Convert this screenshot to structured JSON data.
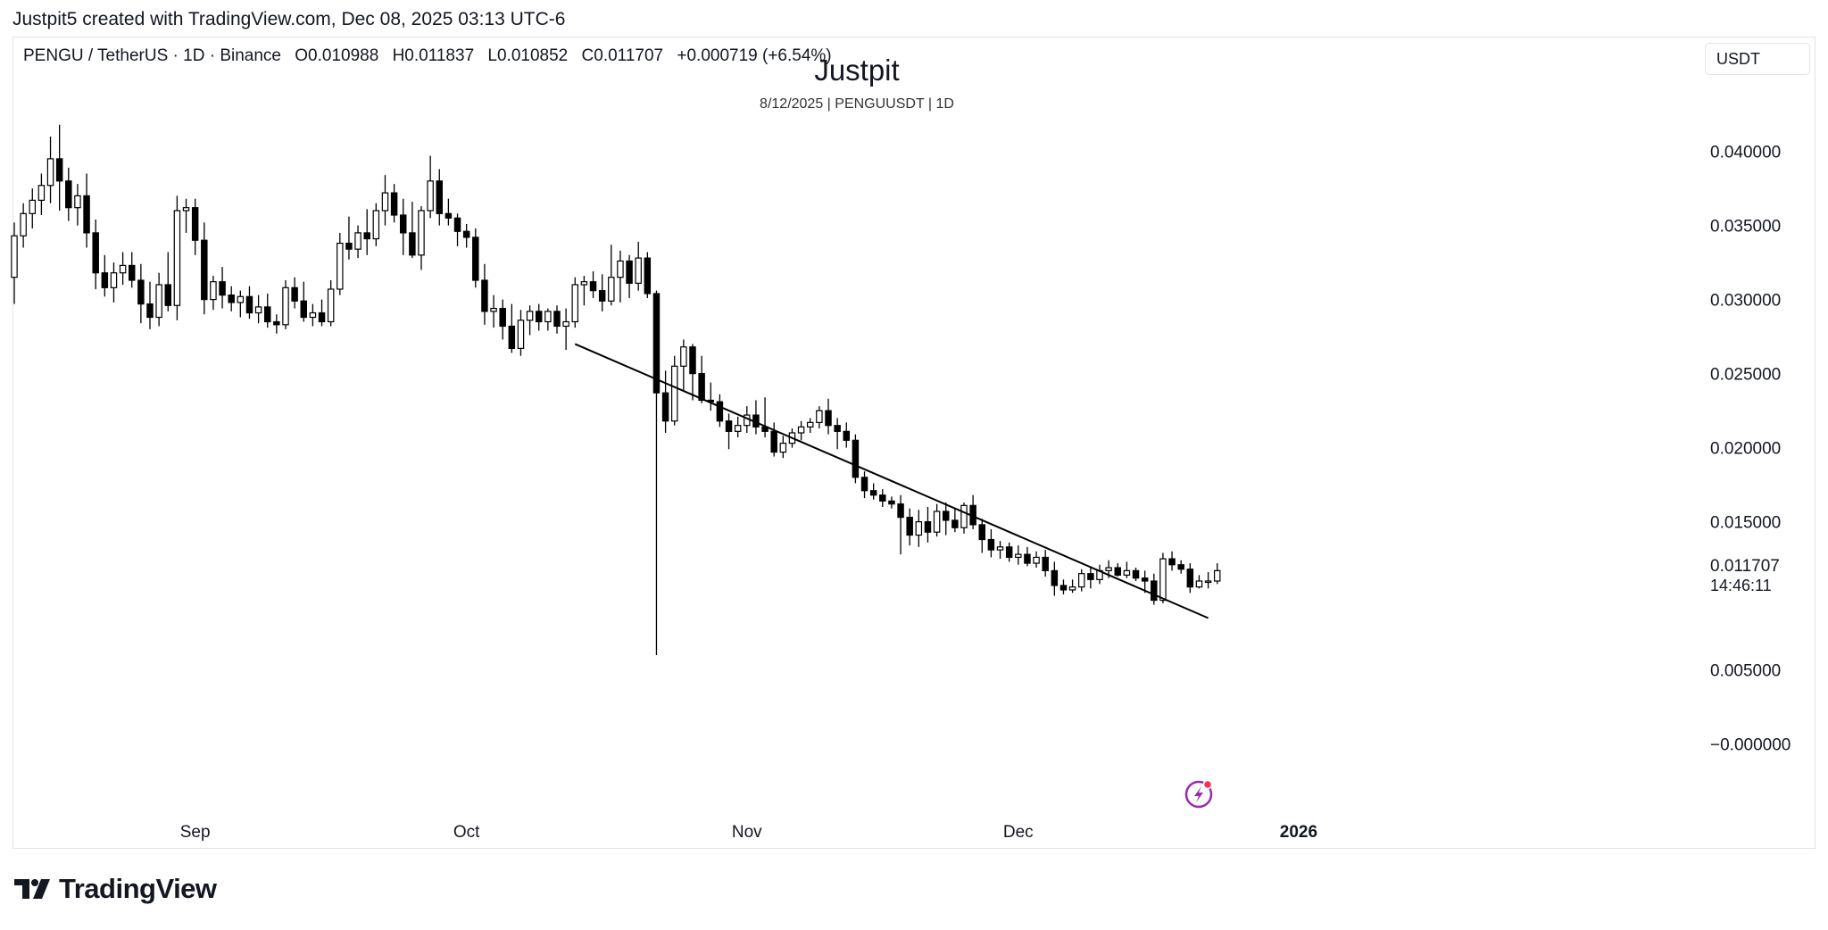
{
  "header": {
    "caption": "Justpit5 created with TradingView.com, Dec 08, 2025 03:13 UTC-6"
  },
  "legend": {
    "symbol": "PENGU / TetherUS · 1D · Binance",
    "open": "O0.010988",
    "high": "H0.011837",
    "low": "L0.010852",
    "close": "C0.011707",
    "change": "+0.000719 (+6.54%)"
  },
  "watermark": {
    "title": "Justpit",
    "subtitle": "8/12/2025 | PENGUUSDT | 1D"
  },
  "currency_button": {
    "label": "USDT"
  },
  "price_label": {
    "value": "0.011707",
    "countdown": "14:46:11"
  },
  "footer": {
    "brand": "TradingView"
  },
  "colors": {
    "up_body": "#ffffff",
    "down_body": "#000000",
    "wick": "#000000",
    "trendline": "#000000",
    "lightning_icon": "#9c27b0"
  },
  "chart_data": {
    "type": "candlestick",
    "title": "",
    "xlabel": "",
    "ylabel": "",
    "ylim": [
      -0.004,
      0.046
    ],
    "xlim": [
      "2025-08-12",
      "2026-02-08"
    ],
    "y_ticks": [
      "0.040000",
      "0.035000",
      "0.030000",
      "0.025000",
      "0.020000",
      "0.015000",
      "0.005000",
      "−0.000000"
    ],
    "y_tick_values": [
      0.04,
      0.035,
      0.03,
      0.025,
      0.02,
      0.015,
      0.005,
      0.0
    ],
    "x_ticks": [
      {
        "label": "Sep",
        "date": "2025-09-01",
        "bold": false
      },
      {
        "label": "Oct",
        "date": "2025-10-01",
        "bold": false
      },
      {
        "label": "Nov",
        "date": "2025-11-01",
        "bold": false
      },
      {
        "label": "Dec",
        "date": "2025-12-01",
        "bold": false
      },
      {
        "label": "2026",
        "date": "2026-01-01",
        "bold": true
      }
    ],
    "start_date": "2025-08-12",
    "candles": [
      [
        0.0315,
        0.0352,
        0.0297,
        0.0343
      ],
      [
        0.0343,
        0.0365,
        0.0335,
        0.0358
      ],
      [
        0.0358,
        0.0375,
        0.0348,
        0.0367
      ],
      [
        0.0367,
        0.0385,
        0.0357,
        0.0377
      ],
      [
        0.0377,
        0.041,
        0.0365,
        0.0395
      ],
      [
        0.0395,
        0.0418,
        0.036,
        0.038
      ],
      [
        0.038,
        0.0389,
        0.0353,
        0.0362
      ],
      [
        0.0362,
        0.0378,
        0.035,
        0.037
      ],
      [
        0.037,
        0.0385,
        0.0335,
        0.0345
      ],
      [
        0.0345,
        0.0354,
        0.0307,
        0.0318
      ],
      [
        0.0318,
        0.033,
        0.0302,
        0.0308
      ],
      [
        0.0308,
        0.0325,
        0.0298,
        0.0318
      ],
      [
        0.0318,
        0.0332,
        0.031,
        0.0323
      ],
      [
        0.0323,
        0.0332,
        0.0308,
        0.0313
      ],
      [
        0.0313,
        0.0324,
        0.0284,
        0.0297
      ],
      [
        0.0297,
        0.0312,
        0.028,
        0.0288
      ],
      [
        0.0288,
        0.0318,
        0.0282,
        0.031
      ],
      [
        0.031,
        0.0332,
        0.0292,
        0.0296
      ],
      [
        0.0296,
        0.037,
        0.0286,
        0.036
      ],
      [
        0.036,
        0.0368,
        0.0345,
        0.0362
      ],
      [
        0.0362,
        0.0368,
        0.033,
        0.034
      ],
      [
        0.034,
        0.0352,
        0.029,
        0.03
      ],
      [
        0.03,
        0.0316,
        0.0293,
        0.0312
      ],
      [
        0.0312,
        0.0322,
        0.0294,
        0.0303
      ],
      [
        0.0303,
        0.0309,
        0.0292,
        0.0298
      ],
      [
        0.0298,
        0.0306,
        0.0288,
        0.0302
      ],
      [
        0.0302,
        0.0309,
        0.0287,
        0.0291
      ],
      [
        0.0291,
        0.0303,
        0.0284,
        0.0295
      ],
      [
        0.0295,
        0.0304,
        0.0281,
        0.0285
      ],
      [
        0.0285,
        0.029,
        0.0277,
        0.0283
      ],
      [
        0.0283,
        0.0313,
        0.028,
        0.0308
      ],
      [
        0.0308,
        0.0315,
        0.0294,
        0.0299
      ],
      [
        0.0299,
        0.0312,
        0.0285,
        0.0288
      ],
      [
        0.0288,
        0.0297,
        0.0282,
        0.0291
      ],
      [
        0.0291,
        0.03,
        0.0282,
        0.0285
      ],
      [
        0.0285,
        0.0313,
        0.0282,
        0.0307
      ],
      [
        0.0307,
        0.0345,
        0.0303,
        0.0338
      ],
      [
        0.0338,
        0.0356,
        0.0327,
        0.0334
      ],
      [
        0.0334,
        0.035,
        0.0328,
        0.0345
      ],
      [
        0.0345,
        0.0361,
        0.033,
        0.0341
      ],
      [
        0.0341,
        0.0365,
        0.0336,
        0.036
      ],
      [
        0.036,
        0.0384,
        0.035,
        0.0372
      ],
      [
        0.0372,
        0.0378,
        0.0352,
        0.0357
      ],
      [
        0.0357,
        0.0368,
        0.033,
        0.0345
      ],
      [
        0.0345,
        0.0366,
        0.0328,
        0.033
      ],
      [
        0.033,
        0.0363,
        0.032,
        0.036
      ],
      [
        0.036,
        0.0397,
        0.0355,
        0.038
      ],
      [
        0.038,
        0.0388,
        0.035,
        0.0358
      ],
      [
        0.0358,
        0.0368,
        0.035,
        0.0355
      ],
      [
        0.0355,
        0.0358,
        0.0336,
        0.0346
      ],
      [
        0.0346,
        0.0351,
        0.0335,
        0.0342
      ],
      [
        0.0342,
        0.0348,
        0.0308,
        0.0313
      ],
      [
        0.0313,
        0.0324,
        0.0283,
        0.0292
      ],
      [
        0.0292,
        0.0303,
        0.0281,
        0.0294
      ],
      [
        0.0294,
        0.03,
        0.0273,
        0.0282
      ],
      [
        0.0282,
        0.0297,
        0.0264,
        0.0267
      ],
      [
        0.0267,
        0.0293,
        0.0262,
        0.0286
      ],
      [
        0.0286,
        0.0296,
        0.0276,
        0.0292
      ],
      [
        0.0292,
        0.0297,
        0.0279,
        0.0285
      ],
      [
        0.0285,
        0.0294,
        0.0279,
        0.0292
      ],
      [
        0.0292,
        0.0296,
        0.0277,
        0.0282
      ],
      [
        0.0282,
        0.0294,
        0.0266,
        0.0285
      ],
      [
        0.0285,
        0.0315,
        0.0281,
        0.031
      ],
      [
        0.031,
        0.0316,
        0.0296,
        0.0312
      ],
      [
        0.0312,
        0.0319,
        0.0301,
        0.0306
      ],
      [
        0.0306,
        0.0317,
        0.0292,
        0.0299
      ],
      [
        0.0299,
        0.0337,
        0.0296,
        0.0315
      ],
      [
        0.0315,
        0.0333,
        0.0298,
        0.0326
      ],
      [
        0.0326,
        0.033,
        0.0301,
        0.0311
      ],
      [
        0.0311,
        0.0339,
        0.0306,
        0.0328
      ],
      [
        0.0328,
        0.0332,
        0.0301,
        0.0304
      ],
      [
        0.0304,
        0.0306,
        0.006,
        0.0237
      ],
      [
        0.0237,
        0.0252,
        0.021,
        0.0218
      ],
      [
        0.0218,
        0.0262,
        0.0215,
        0.0255
      ],
      [
        0.0255,
        0.0273,
        0.0238,
        0.0268
      ],
      [
        0.0268,
        0.027,
        0.0232,
        0.025
      ],
      [
        0.025,
        0.0262,
        0.023,
        0.0232
      ],
      [
        0.0232,
        0.0244,
        0.0225,
        0.0231
      ],
      [
        0.0231,
        0.0236,
        0.0214,
        0.0218
      ],
      [
        0.0218,
        0.0223,
        0.0199,
        0.0211
      ],
      [
        0.0211,
        0.0221,
        0.0207,
        0.0215
      ],
      [
        0.0215,
        0.0228,
        0.021,
        0.0222
      ],
      [
        0.0222,
        0.0232,
        0.0209,
        0.0214
      ],
      [
        0.0214,
        0.0234,
        0.0207,
        0.0211
      ],
      [
        0.0211,
        0.0217,
        0.0194,
        0.0197
      ],
      [
        0.0197,
        0.0208,
        0.0193,
        0.0203
      ],
      [
        0.0203,
        0.0213,
        0.02,
        0.021
      ],
      [
        0.021,
        0.0218,
        0.0205,
        0.0214
      ],
      [
        0.0214,
        0.022,
        0.021,
        0.0217
      ],
      [
        0.0217,
        0.0228,
        0.0213,
        0.0225
      ],
      [
        0.0225,
        0.0233,
        0.0209,
        0.0215
      ],
      [
        0.0215,
        0.022,
        0.0199,
        0.0211
      ],
      [
        0.0211,
        0.0217,
        0.02,
        0.0205
      ],
      [
        0.0205,
        0.0209,
        0.0176,
        0.018
      ],
      [
        0.018,
        0.0184,
        0.0166,
        0.0171
      ],
      [
        0.0171,
        0.0176,
        0.0165,
        0.0168
      ],
      [
        0.0168,
        0.0172,
        0.016,
        0.0164
      ],
      [
        0.0164,
        0.0167,
        0.0159,
        0.0162
      ],
      [
        0.0162,
        0.0168,
        0.0128,
        0.0153
      ],
      [
        0.0153,
        0.0159,
        0.0134,
        0.0141
      ],
      [
        0.0141,
        0.0158,
        0.0133,
        0.015
      ],
      [
        0.015,
        0.016,
        0.0136,
        0.0143
      ],
      [
        0.0143,
        0.0162,
        0.014,
        0.0157
      ],
      [
        0.0157,
        0.0163,
        0.0141,
        0.0151
      ],
      [
        0.0151,
        0.0159,
        0.0143,
        0.0146
      ],
      [
        0.0146,
        0.0163,
        0.0142,
        0.0161
      ],
      [
        0.0161,
        0.0168,
        0.0145,
        0.0148
      ],
      [
        0.0148,
        0.0152,
        0.0129,
        0.0138
      ],
      [
        0.0138,
        0.0145,
        0.0126,
        0.0131
      ],
      [
        0.0131,
        0.0137,
        0.0125,
        0.0133
      ],
      [
        0.0133,
        0.0136,
        0.0123,
        0.0126
      ],
      [
        0.0126,
        0.0134,
        0.0121,
        0.0128
      ],
      [
        0.0128,
        0.0133,
        0.012,
        0.0122
      ],
      [
        0.0122,
        0.013,
        0.0119,
        0.0126
      ],
      [
        0.0126,
        0.0131,
        0.0113,
        0.0117
      ],
      [
        0.0117,
        0.0123,
        0.01,
        0.0107
      ],
      [
        0.0107,
        0.0111,
        0.0101,
        0.0104
      ],
      [
        0.0104,
        0.0111,
        0.0102,
        0.0106
      ],
      [
        0.0106,
        0.0118,
        0.0103,
        0.0115
      ],
      [
        0.0115,
        0.0119,
        0.0105,
        0.0111
      ],
      [
        0.0111,
        0.0121,
        0.0108,
        0.0117
      ],
      [
        0.0117,
        0.0124,
        0.0112,
        0.0119
      ],
      [
        0.0119,
        0.0122,
        0.0113,
        0.0114
      ],
      [
        0.0114,
        0.0123,
        0.0112,
        0.0117
      ],
      [
        0.0117,
        0.0119,
        0.011,
        0.0112
      ],
      [
        0.0112,
        0.0117,
        0.0102,
        0.011
      ],
      [
        0.011,
        0.0115,
        0.0094,
        0.0097
      ],
      [
        0.0097,
        0.0129,
        0.0095,
        0.0125
      ],
      [
        0.0125,
        0.013,
        0.0117,
        0.0121
      ],
      [
        0.0121,
        0.0124,
        0.0115,
        0.0118
      ],
      [
        0.0118,
        0.0122,
        0.0102,
        0.0106
      ],
      [
        0.0106,
        0.0114,
        0.0105,
        0.011
      ],
      [
        0.011,
        0.0116,
        0.0105,
        0.011
      ],
      [
        0.011,
        0.0122,
        0.0108,
        0.0117
      ]
    ],
    "trendline": {
      "start": {
        "date": "2025-10-13",
        "value": 0.027
      },
      "end": {
        "date": "2025-12-22",
        "value": 0.0085
      }
    }
  }
}
